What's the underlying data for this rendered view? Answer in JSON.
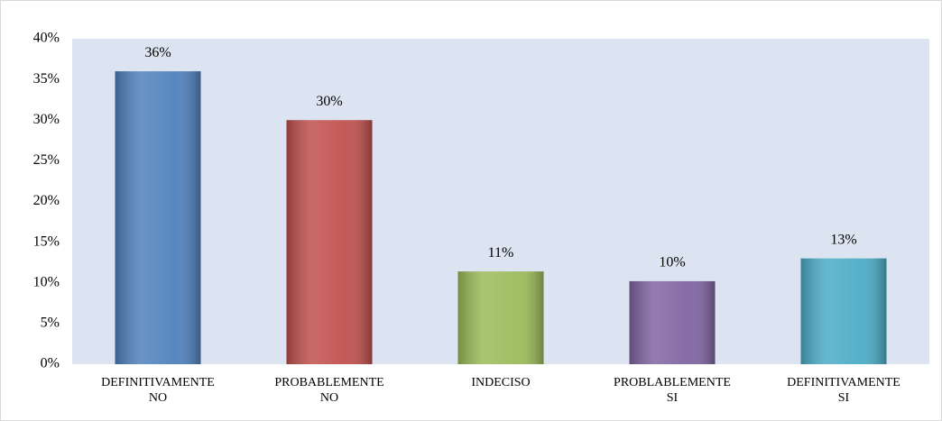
{
  "chart_data": {
    "type": "bar",
    "categories": [
      "DEFINITIVAMENTE NO",
      "PROBABLEMENTE NO",
      "INDECISO",
      "PROBLABLEMENTE SI",
      "DEFINITIVAMENTE SI"
    ],
    "values": [
      36,
      30,
      11.4,
      10.2,
      13
    ],
    "value_labels": [
      "36%",
      "30%",
      "11%",
      "10%",
      "13%"
    ],
    "colors": [
      "#4f81bd",
      "#c0504d",
      "#9bbb59",
      "#8064a2",
      "#4bacc6"
    ],
    "ylim": [
      0,
      40
    ],
    "yticks": [
      {
        "value": 0,
        "label": "0%"
      },
      {
        "value": 5,
        "label": "5%"
      },
      {
        "value": 10,
        "label": "10%"
      },
      {
        "value": 15,
        "label": "15%"
      },
      {
        "value": 20,
        "label": "20%"
      },
      {
        "value": 25,
        "label": "25%"
      },
      {
        "value": 30,
        "label": "30%"
      },
      {
        "value": 35,
        "label": "35%"
      },
      {
        "value": 40,
        "label": "40%"
      }
    ],
    "grid": false
  }
}
